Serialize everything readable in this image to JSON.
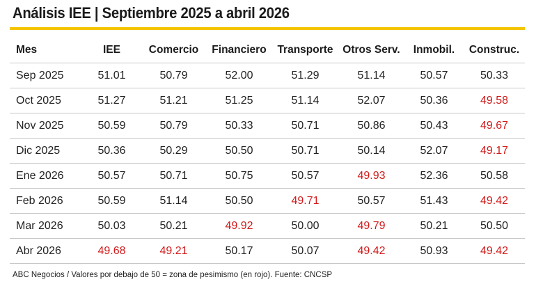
{
  "title": "Análisis IEE | Septiembre 2025 a abril 2026",
  "accent_color": "#f4c400",
  "negative_color": "#d11a1a",
  "threshold": 50,
  "headers": [
    "Mes",
    "IEE",
    "Comercio",
    "Financiero",
    "Transporte",
    "Otros Serv.",
    "Inmobil.",
    "Construc."
  ],
  "rows": [
    {
      "mes": "Sep 2025",
      "values": [
        "51.01",
        "50.79",
        "52.00",
        "51.29",
        "51.14",
        "50.57",
        "50.33"
      ]
    },
    {
      "mes": "Oct 2025",
      "values": [
        "51.27",
        "51.21",
        "51.25",
        "51.14",
        "52.07",
        "50.36",
        "49.58"
      ]
    },
    {
      "mes": "Nov 2025",
      "values": [
        "50.59",
        "50.79",
        "50.33",
        "50.71",
        "50.86",
        "50.43",
        "49.67"
      ]
    },
    {
      "mes": "Dic 2025",
      "values": [
        "50.36",
        "50.29",
        "50.50",
        "50.71",
        "50.14",
        "52.07",
        "49.17"
      ]
    },
    {
      "mes": "Ene 2026",
      "values": [
        "50.57",
        "50.71",
        "50.75",
        "50.57",
        "49.93",
        "52.36",
        "50.58"
      ]
    },
    {
      "mes": "Feb 2026",
      "values": [
        "50.59",
        "51.14",
        "50.50",
        "49.71",
        "50.57",
        "51.43",
        "49.42"
      ]
    },
    {
      "mes": "Mar 2026",
      "values": [
        "50.03",
        "50.21",
        "49.92",
        "50.00",
        "49.79",
        "50.21",
        "50.50"
      ]
    },
    {
      "mes": "Abr 2026",
      "values": [
        "49.68",
        "49.21",
        "50.17",
        "50.07",
        "49.42",
        "50.93",
        "49.42"
      ]
    }
  ],
  "footer": "ABC Negocios / Valores por debajo de 50 = zona de pesimismo (en rojo). Fuente: CNCSP"
}
